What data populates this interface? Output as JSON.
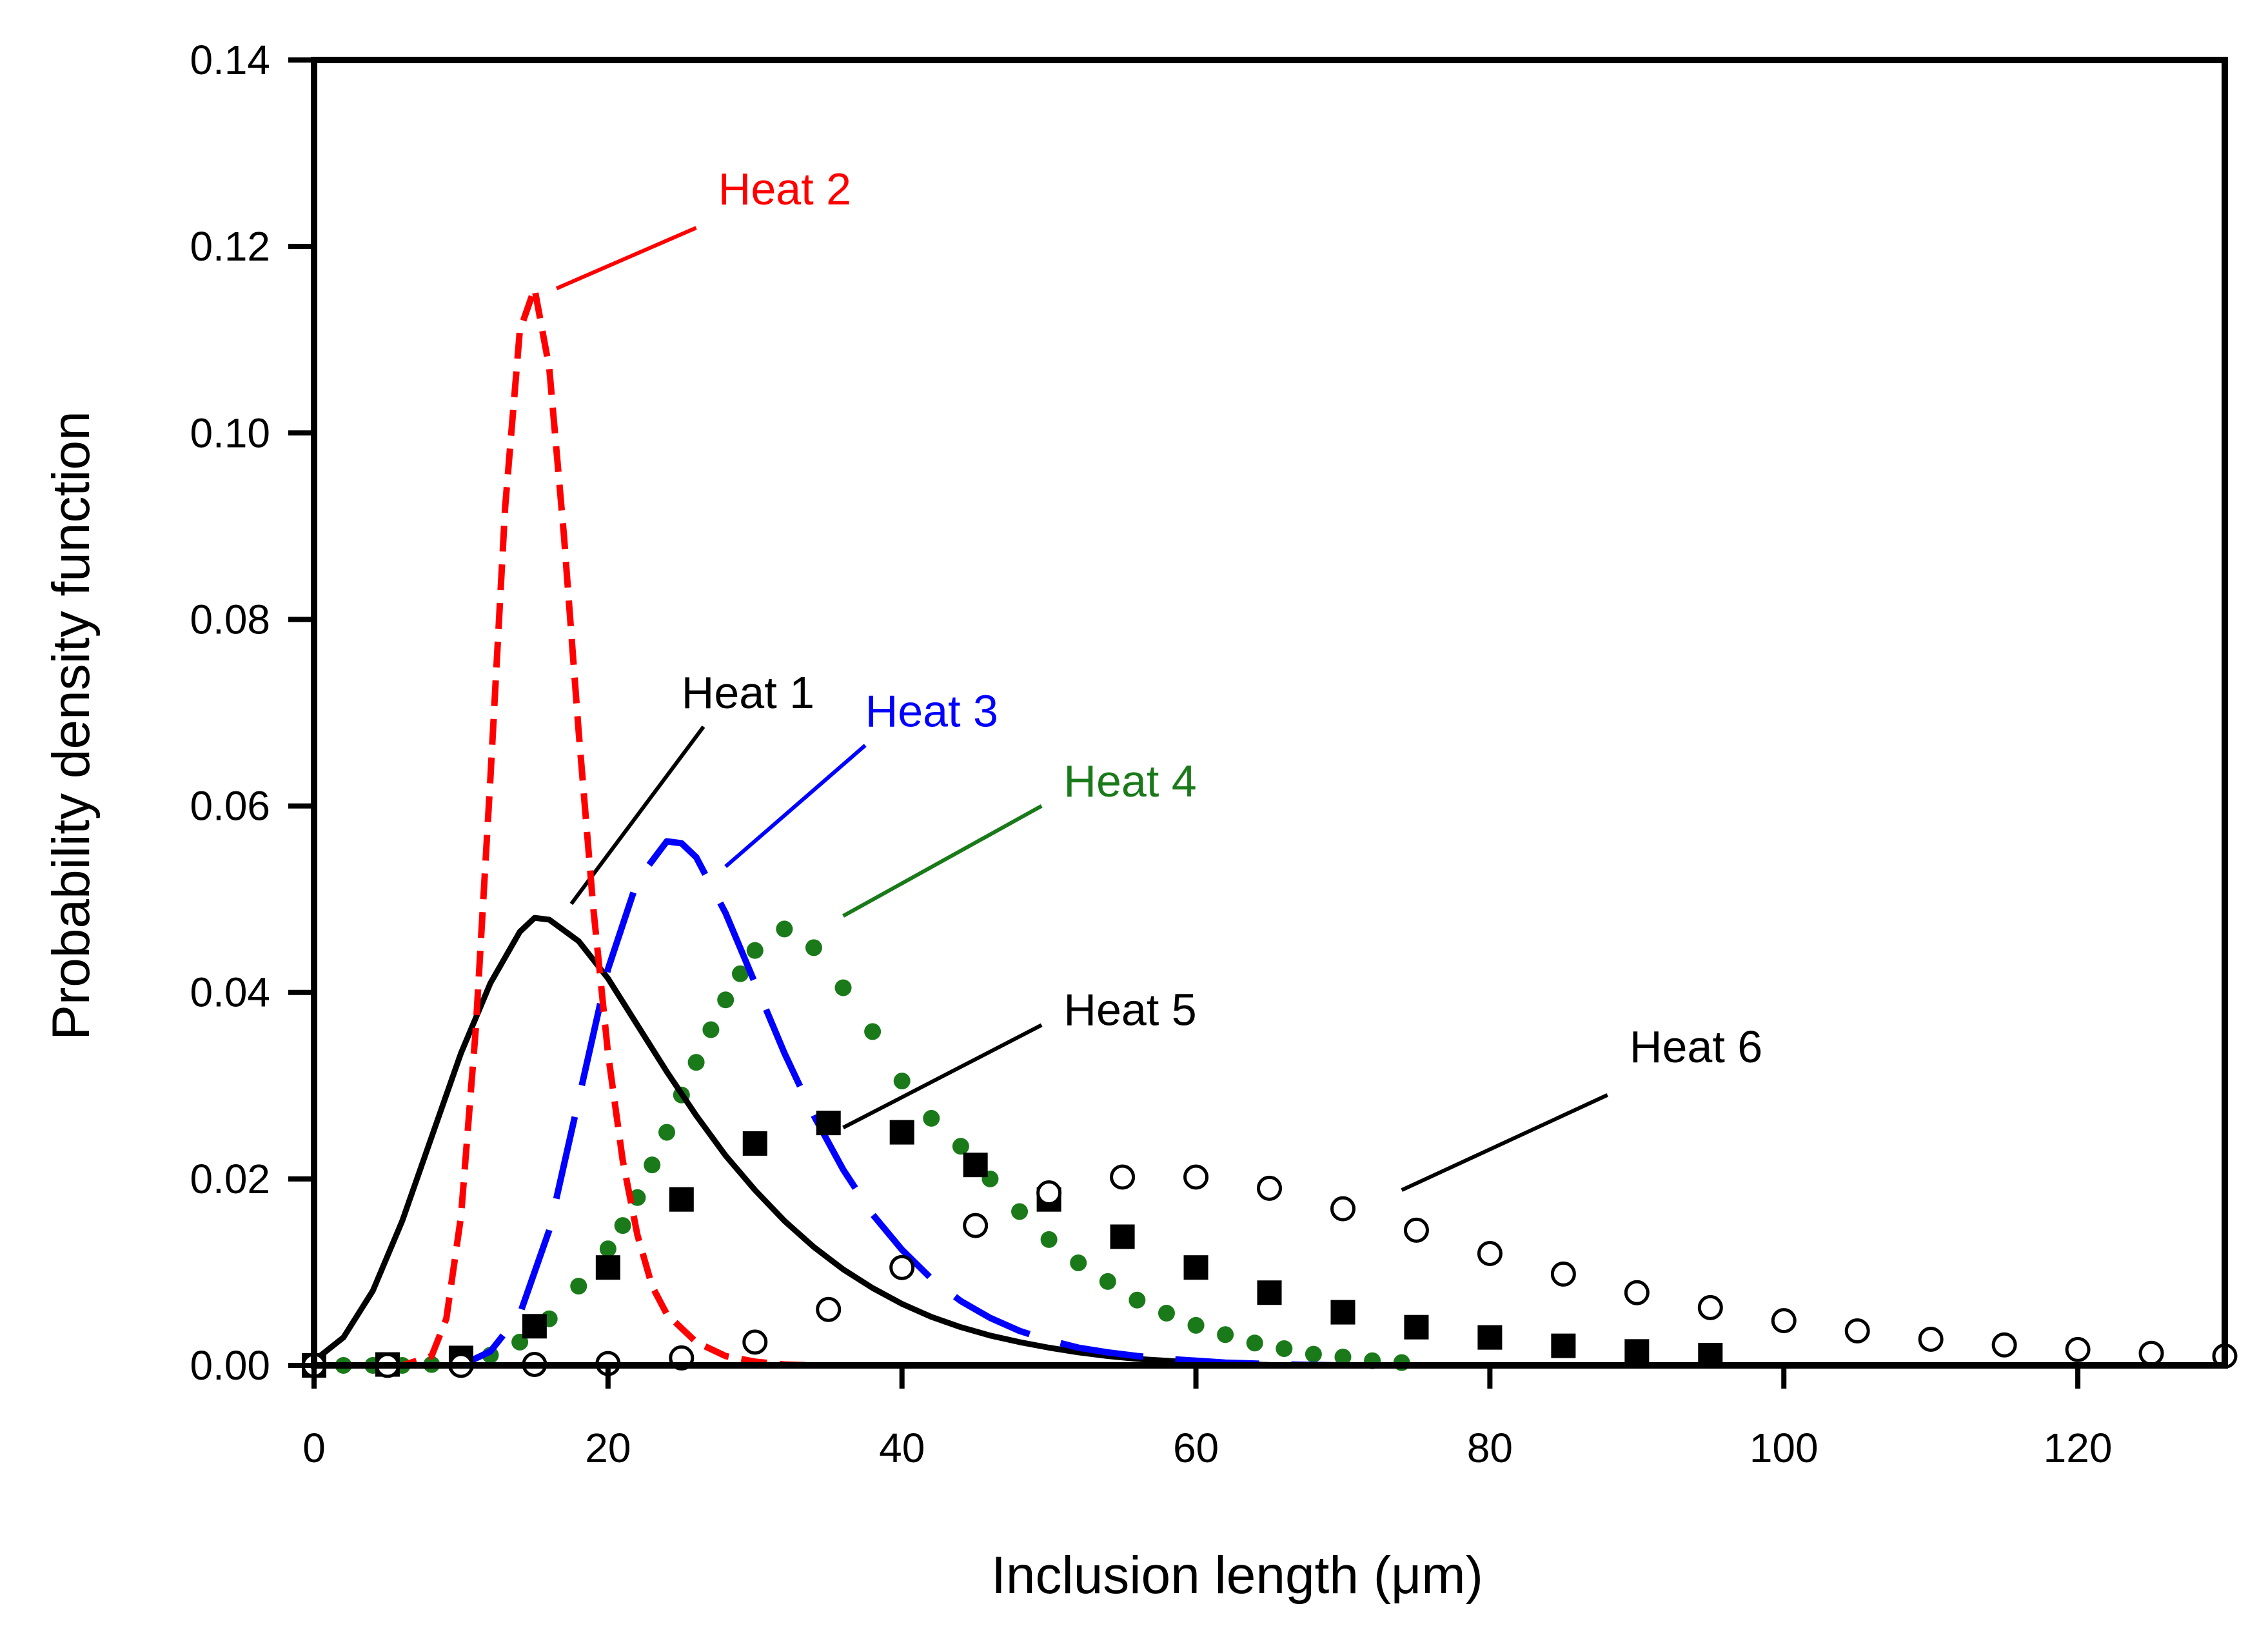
{
  "chart_data": {
    "type": "line",
    "title": "",
    "xlabel": "Inclusion length (μm)",
    "ylabel": "Probability density function",
    "xlim": [
      0,
      130
    ],
    "ylim": [
      0,
      0.14
    ],
    "xticks": [
      0,
      20,
      40,
      60,
      80,
      100,
      120
    ],
    "xtick_labels": [
      "0",
      "20",
      "40",
      "60",
      "80",
      "100",
      "120"
    ],
    "yticks": [
      0,
      0.02,
      0.04,
      0.06,
      0.08,
      0.1,
      0.12,
      0.14
    ],
    "ytick_labels": [
      "0.00",
      "0.02",
      "0.04",
      "0.06",
      "0.08",
      "0.10",
      "0.12",
      "0.14"
    ],
    "grid": false,
    "series": [
      {
        "name": "Heat 1",
        "style": "solid",
        "color": "#000000",
        "x": [
          0,
          2,
          4,
          6,
          8,
          10,
          12,
          14,
          15,
          16,
          18,
          20,
          22,
          24,
          26,
          28,
          30,
          32,
          34,
          36,
          38,
          40,
          42,
          44,
          46,
          48,
          50,
          52,
          54,
          56,
          58,
          60,
          62,
          64,
          66
        ],
        "y": [
          0.0005,
          0.003,
          0.008,
          0.0155,
          0.0245,
          0.0335,
          0.041,
          0.0465,
          0.048,
          0.0478,
          0.0455,
          0.0415,
          0.0365,
          0.0315,
          0.0268,
          0.0225,
          0.0188,
          0.0155,
          0.0127,
          0.0103,
          0.0083,
          0.0066,
          0.0052,
          0.0041,
          0.0032,
          0.0025,
          0.0019,
          0.0014,
          0.001,
          0.0007,
          0.0005,
          0.0003,
          0.0002,
          0.0001,
          0.0
        ]
      },
      {
        "name": "Heat 2",
        "style": "short-dash",
        "color": "#ff0000",
        "x": [
          0,
          6,
          8,
          9,
          10,
          11,
          12,
          13,
          14,
          15,
          16,
          17,
          18,
          19,
          20,
          21,
          22,
          23,
          24,
          26,
          28,
          30,
          32,
          34,
          36,
          40,
          50,
          60,
          65
        ],
        "y": [
          0.0,
          0.0,
          0.001,
          0.005,
          0.016,
          0.036,
          0.063,
          0.092,
          0.111,
          0.1155,
          0.107,
          0.089,
          0.068,
          0.049,
          0.0335,
          0.022,
          0.014,
          0.0085,
          0.0055,
          0.0025,
          0.001,
          0.0004,
          0.0001,
          0.0,
          0.0,
          0.0,
          0.0,
          0.0,
          0.0
        ]
      },
      {
        "name": "Heat 3",
        "style": "long-dash",
        "color": "#0000ff",
        "x": [
          0,
          10,
          12,
          14,
          16,
          18,
          20,
          22,
          24,
          25,
          26,
          28,
          30,
          32,
          34,
          36,
          38,
          40,
          42,
          44,
          46,
          48,
          50,
          52,
          54,
          56,
          58,
          60,
          62,
          64,
          66,
          70,
          75
        ],
        "y": [
          0.0,
          0.0,
          0.0015,
          0.0055,
          0.0145,
          0.0285,
          0.0425,
          0.052,
          0.0562,
          0.056,
          0.0545,
          0.0485,
          0.041,
          0.0335,
          0.0268,
          0.021,
          0.0162,
          0.0124,
          0.0093,
          0.0069,
          0.0051,
          0.0037,
          0.0027,
          0.0019,
          0.0014,
          0.001,
          0.0007,
          0.0005,
          0.0003,
          0.0002,
          0.0001,
          0.0,
          0.0
        ]
      },
      {
        "name": "Heat 4",
        "style": "dotted-markers",
        "color": "#1a7a1a",
        "x": [
          2,
          4,
          6,
          8,
          10,
          12,
          14,
          16,
          18,
          20,
          21,
          22,
          23,
          24,
          25,
          26,
          27,
          28,
          29,
          30,
          32,
          34,
          36,
          38,
          40,
          42,
          44,
          46,
          48,
          50,
          52,
          54,
          56,
          58,
          60,
          62,
          64,
          66,
          68,
          70,
          72,
          74
        ],
        "y": [
          0.0,
          0.0,
          0.0,
          0.0001,
          0.0004,
          0.0011,
          0.0025,
          0.005,
          0.0085,
          0.0125,
          0.015,
          0.018,
          0.0215,
          0.025,
          0.029,
          0.0325,
          0.036,
          0.0392,
          0.042,
          0.0445,
          0.0468,
          0.0448,
          0.0405,
          0.0358,
          0.0305,
          0.0265,
          0.0235,
          0.02,
          0.0165,
          0.0135,
          0.011,
          0.009,
          0.007,
          0.0056,
          0.0043,
          0.0033,
          0.0024,
          0.0018,
          0.0012,
          0.0009,
          0.0005,
          0.0003
        ]
      },
      {
        "name": "Heat 5",
        "style": "filled-square",
        "color": "#000000",
        "x": [
          0,
          5,
          10,
          15,
          20,
          25,
          30,
          35,
          40,
          45,
          50,
          55,
          60,
          65,
          70,
          75,
          80,
          85,
          90,
          95
        ],
        "y": [
          0.0,
          0.0001,
          0.0008,
          0.0042,
          0.0105,
          0.0178,
          0.0238,
          0.026,
          0.025,
          0.0215,
          0.0178,
          0.0138,
          0.0105,
          0.0078,
          0.0057,
          0.0041,
          0.003,
          0.0021,
          0.0015,
          0.0011
        ]
      },
      {
        "name": "Heat 6",
        "style": "open-circle",
        "color": "#000000",
        "x": [
          0,
          5,
          10,
          15,
          20,
          25,
          30,
          35,
          40,
          45,
          50,
          55,
          60,
          65,
          70,
          75,
          80,
          85,
          90,
          95,
          100,
          105,
          110,
          115,
          120,
          125,
          130
        ],
        "y": [
          0.0,
          0.0,
          0.0,
          0.0001,
          0.0002,
          0.0008,
          0.0025,
          0.006,
          0.0105,
          0.015,
          0.0185,
          0.0202,
          0.0202,
          0.019,
          0.0168,
          0.0145,
          0.012,
          0.0098,
          0.0078,
          0.0062,
          0.0048,
          0.0037,
          0.0028,
          0.0022,
          0.0017,
          0.0013,
          0.001
        ]
      }
    ],
    "annotations": [
      {
        "text": "Heat 1",
        "color": "#000000",
        "point": [
          17.5,
          0.0495
        ],
        "label_anchor": [
          26.5,
          0.0685
        ],
        "text_at": [
          25,
          0.0705
        ]
      },
      {
        "text": "Heat 2",
        "color": "#ff0000",
        "point": [
          16.5,
          0.1155
        ],
        "label_anchor": [
          26,
          0.122
        ],
        "text_at": [
          27.5,
          0.1245
        ]
      },
      {
        "text": "Heat 3",
        "color": "#0000ff",
        "point": [
          28,
          0.0535
        ],
        "label_anchor": [
          37.5,
          0.0665
        ],
        "text_at": [
          37.5,
          0.0685
        ]
      },
      {
        "text": "Heat 4",
        "color": "#1a7a1a",
        "point": [
          36,
          0.0482
        ],
        "label_anchor": [
          49.5,
          0.06
        ],
        "text_at": [
          51,
          0.061
        ]
      },
      {
        "text": "Heat 5",
        "color": "#000000",
        "point": [
          36,
          0.0255
        ],
        "label_anchor": [
          49.5,
          0.0365
        ],
        "text_at": [
          51,
          0.0365
        ]
      },
      {
        "text": "Heat 6",
        "color": "#000000",
        "point": [
          74,
          0.0188
        ],
        "label_anchor": [
          88,
          0.029
        ],
        "text_at": [
          89.5,
          0.0325
        ]
      }
    ]
  }
}
